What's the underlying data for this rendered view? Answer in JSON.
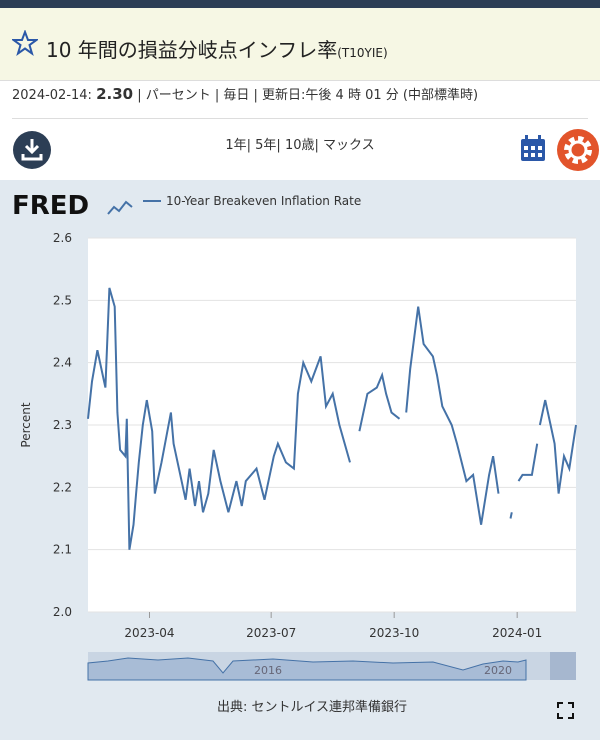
{
  "header": {
    "title": "10 年間の損益分岐点インフレ率",
    "series_id": "(T10YIE)"
  },
  "info": {
    "date": "2024-02-14:",
    "value": "2.30",
    "details": "| パーセント | 毎日 | 更新日:午後 4 時 01 分 (中部標準時)"
  },
  "range_links": "1年| 5年| 10歳| マックス",
  "chart_data": {
    "type": "line",
    "logo": "FRED",
    "ylabel": "Percent",
    "x": [
      "2023-02-14",
      "2023-02-17",
      "2023-02-21",
      "2023-02-27",
      "2023-03-02",
      "2023-03-06",
      "2023-03-08",
      "2023-03-10",
      "2023-03-14",
      "2023-03-15",
      "2023-03-17",
      "2023-03-20",
      "2023-03-22",
      "2023-03-24",
      "2023-03-27",
      "2023-03-30",
      "2023-04-03",
      "2023-04-05",
      "2023-04-10",
      "2023-04-17",
      "2023-04-19",
      "2023-04-25",
      "2023-04-28",
      "2023-05-01",
      "2023-05-05",
      "2023-05-08",
      "2023-05-11",
      "2023-05-15",
      "2023-05-19",
      "2023-05-24",
      "2023-05-30",
      "2023-06-05",
      "2023-06-09",
      "2023-06-12",
      "2023-06-20",
      "2023-06-26",
      "2023-07-03",
      "2023-07-06",
      "2023-07-12",
      "2023-07-18",
      "2023-07-21",
      "2023-07-25",
      "2023-07-31",
      "2023-08-07",
      "2023-08-11",
      "2023-08-16",
      "2023-08-21",
      "2023-08-29",
      "2023-08-31",
      "2023-09-05",
      "2023-09-11",
      "2023-09-18",
      "2023-09-22",
      "2023-09-25",
      "2023-09-29",
      "2023-10-05",
      "2023-10-09",
      "2023-10-10",
      "2023-10-13",
      "2023-10-19",
      "2023-10-23",
      "2023-10-30",
      "2023-11-02",
      "2023-11-06",
      "2023-11-13",
      "2023-11-17",
      "2023-11-24",
      "2023-11-29",
      "2023-12-05",
      "2023-12-11",
      "2023-12-14",
      "2023-12-18",
      "2023-12-25",
      "2023-12-27",
      "2023-12-28",
      "2023-12-29",
      "2024-01-02",
      "2024-01-05",
      "2024-01-12",
      "2024-01-16",
      "2024-01-17",
      "2024-01-18",
      "2024-01-22",
      "2024-01-26",
      "2024-01-29",
      "2024-02-01",
      "2024-02-05",
      "2024-02-09",
      "2024-02-14"
    ],
    "series": [
      {
        "name": "10-Year Breakeven Inflation Rate",
        "color": "#4572a7",
        "values": [
          2.31,
          2.37,
          2.42,
          2.36,
          2.52,
          2.49,
          2.32,
          2.26,
          2.25,
          2.31,
          2.1,
          2.14,
          2.19,
          2.24,
          2.3,
          2.34,
          2.29,
          2.19,
          2.24,
          2.32,
          2.27,
          2.21,
          2.18,
          2.23,
          2.17,
          2.21,
          2.16,
          2.19,
          2.26,
          2.21,
          2.16,
          2.21,
          2.17,
          2.21,
          2.23,
          2.18,
          2.25,
          2.27,
          2.24,
          2.23,
          2.35,
          2.4,
          2.37,
          2.41,
          2.33,
          2.35,
          2.3,
          2.24,
          null,
          2.29,
          2.35,
          2.36,
          2.38,
          2.35,
          2.32,
          2.31,
          null,
          2.32,
          2.39,
          2.49,
          2.43,
          2.41,
          2.38,
          2.33,
          2.3,
          2.27,
          2.21,
          2.22,
          2.14,
          2.22,
          2.25,
          2.19,
          null,
          2.15,
          2.16,
          null,
          2.21,
          2.22,
          2.22,
          2.27,
          null,
          2.3,
          2.34,
          2.3,
          2.27,
          2.19,
          2.25,
          2.23,
          2.3
        ]
      }
    ],
    "xlim": [
      "2023-02-14",
      "2024-02-14"
    ],
    "xticks": [
      {
        "value": "2023-04-01",
        "label": "2023-04"
      },
      {
        "value": "2023-07-01",
        "label": "2023-07"
      },
      {
        "value": "2023-10-01",
        "label": "2023-10"
      },
      {
        "value": "2024-01-01",
        "label": "2024-01"
      }
    ],
    "ylim": [
      2.0,
      2.6
    ],
    "yticks": [
      {
        "value": 2,
        "label": "2.0"
      },
      2.1,
      2.2,
      2.3,
      2.4,
      2.5,
      2.6
    ],
    "grid": true
  },
  "navigator": {
    "labels": [
      "2016",
      "2020"
    ]
  },
  "footer": {
    "source": "出典: セントルイス連邦準備銀行"
  }
}
